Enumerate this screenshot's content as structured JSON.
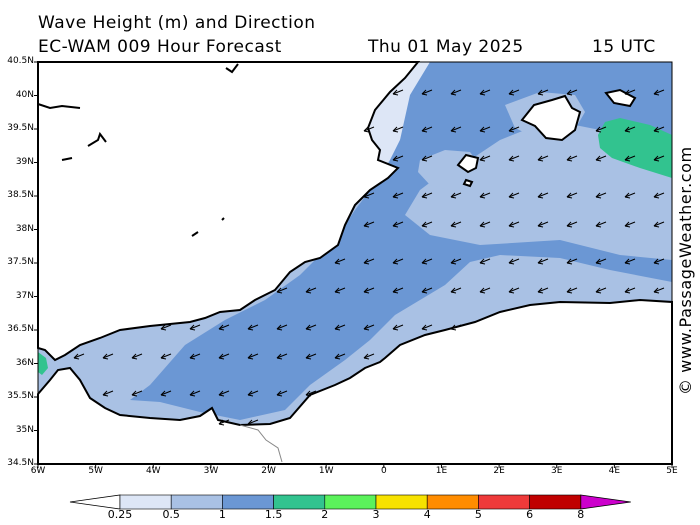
{
  "header": {
    "line1": "Wave Height (m) and Direction",
    "line2": "EC-WAM 009 Hour Forecast",
    "date": "Thu 01 May 2025",
    "time": "15 UTC"
  },
  "map": {
    "lat_labels": [
      "40.5N",
      "40N",
      "39.5N",
      "39N",
      "38.5N",
      "38N",
      "37.5N",
      "37N",
      "36.5N",
      "36N",
      "35.5N",
      "35N",
      "34.5N"
    ],
    "lon_labels": [
      "6W",
      "5W",
      "4W",
      "3W",
      "2W",
      "1W",
      "0",
      "1E",
      "2E",
      "3E",
      "4E",
      "5E"
    ],
    "arrow_direction": "from east-northeast toward west-southwest"
  },
  "colorbar": {
    "labels": [
      "0.25",
      "0.5",
      "1",
      "1.5",
      "2",
      "3",
      "4",
      "5",
      "6",
      "8"
    ],
    "colors": [
      "#ffffff",
      "#dde6f6",
      "#a9c1e4",
      "#6b97d4",
      "#32c38f",
      "#5bf25b",
      "#f7e200",
      "#ff8c00",
      "#ee3a3a",
      "#c00000",
      "#cc00cc"
    ]
  },
  "watermark": "© www.PassageWeather.com"
}
